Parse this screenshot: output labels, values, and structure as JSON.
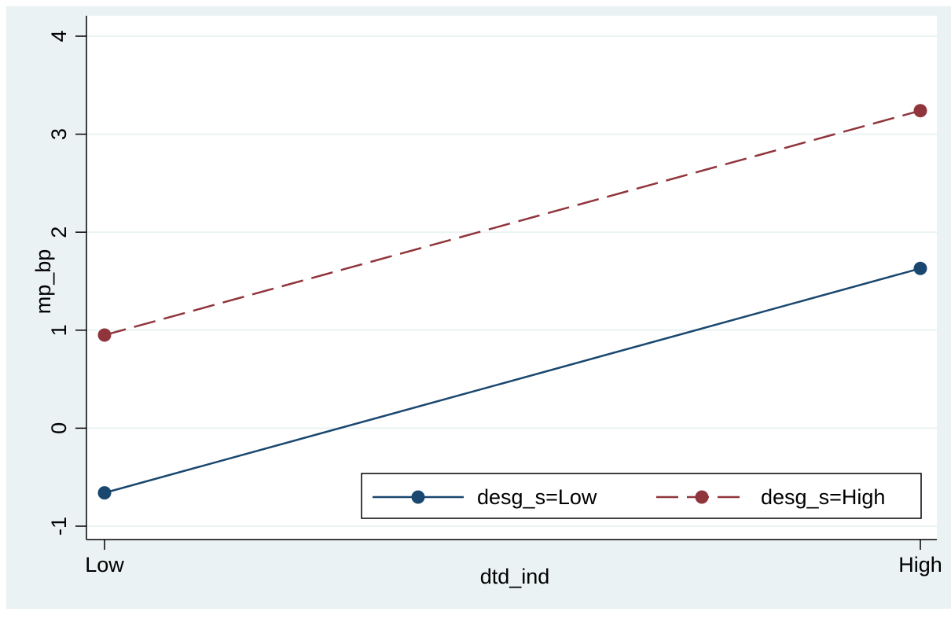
{
  "chart_data": {
    "type": "line",
    "title": "",
    "xlabel": "dtd_ind",
    "ylabel": "mp_bp",
    "categories": [
      "Low",
      "High"
    ],
    "ylim": [
      -1,
      4
    ],
    "yticks": [
      -1,
      0,
      1,
      2,
      3,
      4
    ],
    "grid": true,
    "legend_position": "bottom-right",
    "series": [
      {
        "name": "desg_s=Low",
        "values": [
          -0.66,
          1.63
        ],
        "color": "#1a476f",
        "dash": "solid"
      },
      {
        "name": "desg_s=High",
        "values": [
          0.95,
          3.24
        ],
        "color": "#90353b",
        "dash": "dashed"
      }
    ]
  },
  "colors": {
    "page_background": "#eaf2f3",
    "plot_background": "#ffffff",
    "grid": "#eaf2f3",
    "axis": "#000000"
  }
}
